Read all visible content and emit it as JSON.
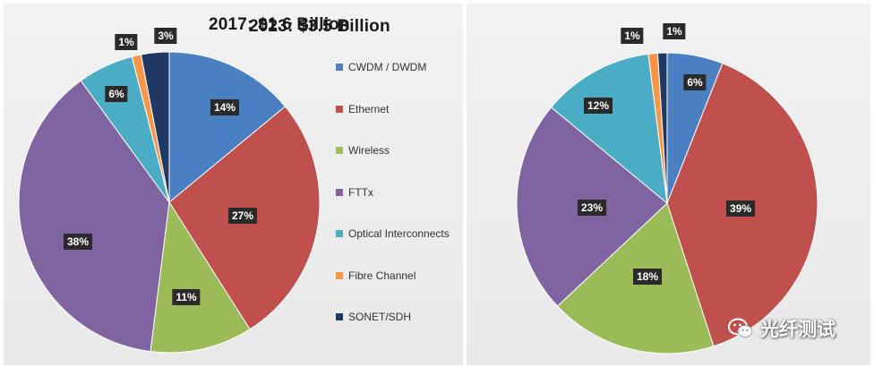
{
  "chart_data": [
    {
      "type": "pie",
      "title": "2017: $1.6 Billion",
      "categories": [
        "CWDM / DWDM",
        "Ethernet",
        "Wireless",
        "FTTx",
        "Optical Interconnects",
        "Fibre Channel",
        "SONET/SDH"
      ],
      "values": [
        14,
        27,
        11,
        38,
        6,
        1,
        3
      ],
      "labels": [
        "14%",
        "27%",
        "11%",
        "38%",
        "6%",
        "1%",
        "3%"
      ],
      "start": "12 o'clock",
      "direction": "clockwise",
      "legend_placement": "right"
    },
    {
      "type": "pie",
      "title": "2023: $3.5 Billion",
      "categories": [
        "CWDM / DWDM",
        "Ethernet",
        "Wireless",
        "FTTx",
        "Optical Interconnects",
        "Fibre Channel",
        "SONET/SDH"
      ],
      "values": [
        6,
        39,
        18,
        23,
        12,
        1,
        1
      ],
      "labels": [
        "6%",
        "39%",
        "18%",
        "23%",
        "12%",
        "1%",
        "1%"
      ],
      "start": "12 o'clock",
      "direction": "clockwise"
    }
  ],
  "legend": [
    {
      "label": "CWDM / DWDM",
      "color": "#4a7fc1"
    },
    {
      "label": "Ethernet",
      "color": "#c0504d"
    },
    {
      "label": "Wireless",
      "color": "#9bbb59"
    },
    {
      "label": "FTTx",
      "color": "#8064a2"
    },
    {
      "label": "Optical Interconnects",
      "color": "#4bacc6"
    },
    {
      "label": "Fibre Channel",
      "color": "#f79646"
    },
    {
      "label": "SONET/SDH",
      "color": "#1f3864"
    }
  ],
  "watermark": {
    "text": "光纤测试",
    "icon": "wechat-icon"
  }
}
